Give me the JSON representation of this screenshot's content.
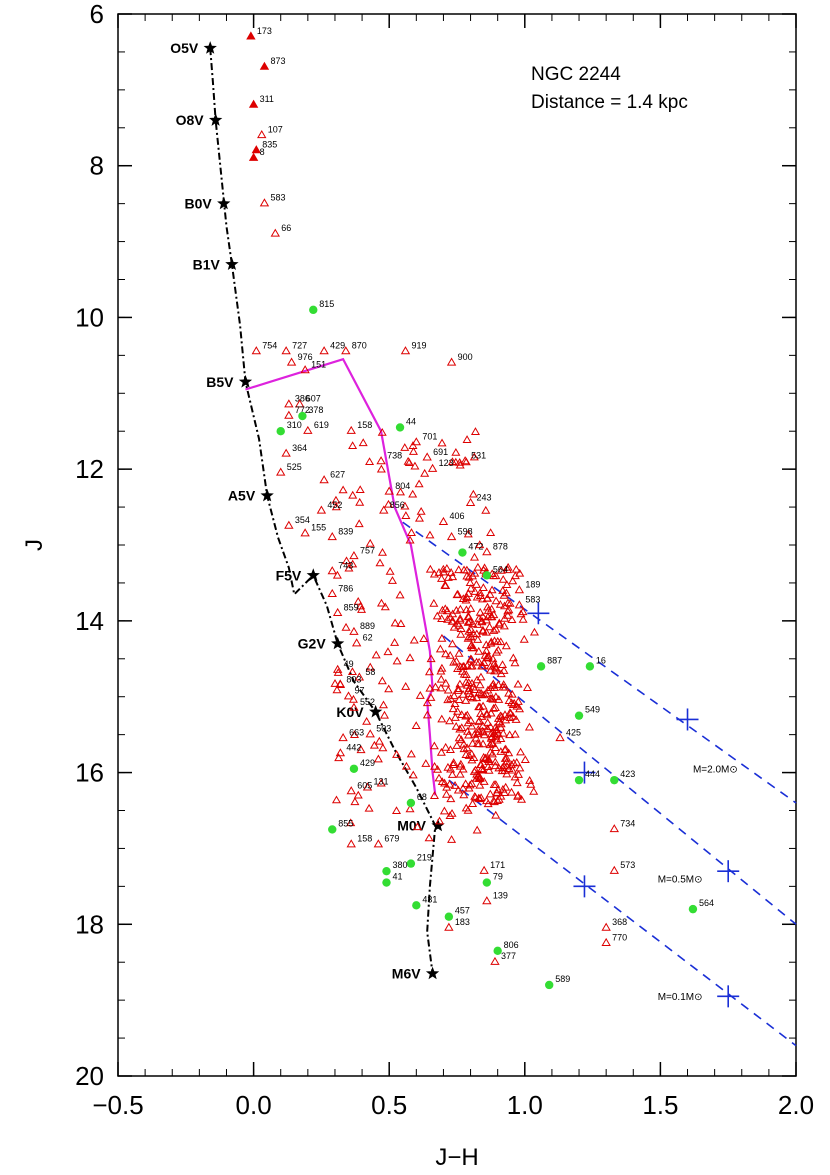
{
  "chart_data": {
    "type": "scatter",
    "title": "NGC 2244",
    "subtitle": "Distance = 1.4 kpc",
    "xlabel": "J−H",
    "ylabel": "J",
    "xlim": [
      -0.5,
      2.0
    ],
    "ylim": [
      20,
      6
    ],
    "x_ticks": [
      -0.5,
      0.0,
      0.5,
      1.0,
      1.5,
      2.0
    ],
    "x_tick_labels": [
      "−0.5",
      "0.0",
      "0.5",
      "1.0",
      "1.5",
      "2.0"
    ],
    "y_ticks": [
      6,
      8,
      10,
      12,
      14,
      16,
      18,
      20
    ],
    "y_tick_labels": [
      "6",
      "8",
      "10",
      "12",
      "14",
      "16",
      "18",
      "20"
    ],
    "y_inverted": true,
    "grid": false,
    "colors": {
      "triangles": "#dd0000",
      "disk_stars": "#33dd33",
      "ms_track": "#000000",
      "pms_track": "#dd22dd",
      "reddening": "#1a2fd6",
      "axis": "#000000"
    },
    "main_sequence": {
      "style": "dash-dot",
      "points": [
        {
          "x": -0.16,
          "y": 6.45
        },
        {
          "x": -0.15,
          "y": 6.9
        },
        {
          "x": -0.14,
          "y": 7.4
        },
        {
          "x": -0.12,
          "y": 8.1
        },
        {
          "x": -0.1,
          "y": 8.8
        },
        {
          "x": -0.08,
          "y": 9.3
        },
        {
          "x": -0.05,
          "y": 10.1
        },
        {
          "x": -0.03,
          "y": 10.85
        },
        {
          "x": 0.02,
          "y": 11.6
        },
        {
          "x": 0.05,
          "y": 12.35
        },
        {
          "x": 0.09,
          "y": 12.9
        },
        {
          "x": 0.13,
          "y": 13.3
        },
        {
          "x": 0.15,
          "y": 13.65
        },
        {
          "x": 0.22,
          "y": 13.4
        },
        {
          "x": 0.27,
          "y": 13.8
        },
        {
          "x": 0.31,
          "y": 14.3
        },
        {
          "x": 0.37,
          "y": 14.8
        },
        {
          "x": 0.45,
          "y": 15.2
        },
        {
          "x": 0.52,
          "y": 15.7
        },
        {
          "x": 0.6,
          "y": 16.2
        },
        {
          "x": 0.67,
          "y": 16.7
        },
        {
          "x": 0.65,
          "y": 17.5
        },
        {
          "x": 0.64,
          "y": 18.1
        },
        {
          "x": 0.66,
          "y": 18.65
        }
      ]
    },
    "spectral_types": [
      {
        "label": "O5V",
        "x": -0.16,
        "y": 6.45
      },
      {
        "label": "O8V",
        "x": -0.14,
        "y": 7.4
      },
      {
        "label": "B0V",
        "x": -0.11,
        "y": 8.5
      },
      {
        "label": "B1V",
        "x": -0.08,
        "y": 9.3
      },
      {
        "label": "B5V",
        "x": -0.03,
        "y": 10.85
      },
      {
        "label": "A5V",
        "x": 0.05,
        "y": 12.35
      },
      {
        "label": "F5V",
        "x": 0.22,
        "y": 13.4
      },
      {
        "label": "G2V",
        "x": 0.31,
        "y": 14.3
      },
      {
        "label": "K0V",
        "x": 0.45,
        "y": 15.2
      },
      {
        "label": "M0V",
        "x": 0.68,
        "y": 16.7
      },
      {
        "label": "M6V",
        "x": 0.66,
        "y": 18.65
      }
    ],
    "pms_isochrone": {
      "points": [
        {
          "x": -0.03,
          "y": 10.95
        },
        {
          "x": 0.33,
          "y": 10.55
        },
        {
          "x": 0.47,
          "y": 11.5
        },
        {
          "x": 0.52,
          "y": 12.5
        },
        {
          "x": 0.58,
          "y": 13.0
        },
        {
          "x": 0.62,
          "y": 13.8
        },
        {
          "x": 0.65,
          "y": 14.4
        },
        {
          "x": 0.66,
          "y": 14.9
        },
        {
          "x": 0.64,
          "y": 15.05
        },
        {
          "x": 0.65,
          "y": 15.5
        },
        {
          "x": 0.66,
          "y": 16.0
        },
        {
          "x": 0.67,
          "y": 16.3
        }
      ]
    },
    "reddening_vectors": [
      {
        "from": {
          "x": 0.55,
          "y": 12.7
        },
        "to": {
          "x": 2.0,
          "y": 16.4
        },
        "crosses": [
          {
            "x": 1.05,
            "y": 13.9
          },
          {
            "x": 1.6,
            "y": 15.3
          }
        ]
      },
      {
        "from": {
          "x": 0.7,
          "y": 14.2
        },
        "to": {
          "x": 2.0,
          "y": 18.0
        },
        "crosses": [
          {
            "x": 1.22,
            "y": 16.0
          },
          {
            "x": 1.75,
            "y": 17.3
          }
        ]
      },
      {
        "from": {
          "x": 0.72,
          "y": 16.1
        },
        "to": {
          "x": 2.0,
          "y": 19.6
        },
        "crosses": [
          {
            "x": 1.22,
            "y": 17.5
          },
          {
            "x": 1.75,
            "y": 18.95
          }
        ]
      }
    ],
    "mass_labels": [
      {
        "text": "M=2.0M⊙",
        "x": 1.62,
        "y": 16.0
      },
      {
        "text": "M=0.5M⊙",
        "x": 1.49,
        "y": 17.45
      },
      {
        "text": "M=0.1M⊙",
        "x": 1.49,
        "y": 19.0
      }
    ],
    "labeled_stars": [
      {
        "id": "173",
        "x": -0.01,
        "y": 6.3,
        "marker": "triangle-filled"
      },
      {
        "id": "873",
        "x": 0.04,
        "y": 6.7,
        "marker": "triangle-filled"
      },
      {
        "id": "311",
        "x": 0.0,
        "y": 7.2,
        "marker": "triangle-filled"
      },
      {
        "id": "107",
        "x": 0.03,
        "y": 7.6,
        "marker": "triangle"
      },
      {
        "id": "835",
        "x": 0.01,
        "y": 7.8,
        "marker": "triangle-filled"
      },
      {
        "id": "8",
        "x": 0.0,
        "y": 7.9,
        "marker": "triangle-filled"
      },
      {
        "id": "583",
        "x": 0.04,
        "y": 8.5,
        "marker": "triangle"
      },
      {
        "id": "66",
        "x": 0.08,
        "y": 8.9,
        "marker": "triangle"
      },
      {
        "id": "815",
        "x": 0.22,
        "y": 9.9,
        "marker": "disk"
      },
      {
        "id": "754",
        "x": 0.01,
        "y": 10.45,
        "marker": "triangle"
      },
      {
        "id": "727",
        "x": 0.12,
        "y": 10.45,
        "marker": "triangle"
      },
      {
        "id": "429",
        "x": 0.26,
        "y": 10.45,
        "marker": "triangle"
      },
      {
        "id": "870",
        "x": 0.34,
        "y": 10.45,
        "marker": "triangle"
      },
      {
        "id": "919",
        "x": 0.56,
        "y": 10.45,
        "marker": "triangle"
      },
      {
        "id": "900",
        "x": 0.73,
        "y": 10.6,
        "marker": "triangle"
      },
      {
        "id": "976",
        "x": 0.14,
        "y": 10.6,
        "marker": "triangle"
      },
      {
        "id": "151",
        "x": 0.19,
        "y": 10.7,
        "marker": "triangle"
      },
      {
        "id": "386",
        "x": 0.13,
        "y": 11.15,
        "marker": "triangle"
      },
      {
        "id": "607",
        "x": 0.17,
        "y": 11.15,
        "marker": "triangle"
      },
      {
        "id": "772",
        "x": 0.13,
        "y": 11.3,
        "marker": "triangle"
      },
      {
        "id": "378",
        "x": 0.18,
        "y": 11.3,
        "marker": "disk"
      },
      {
        "id": "310",
        "x": 0.1,
        "y": 11.5,
        "marker": "disk"
      },
      {
        "id": "619",
        "x": 0.2,
        "y": 11.5,
        "marker": "triangle"
      },
      {
        "id": "158",
        "x": 0.36,
        "y": 11.5,
        "marker": "triangle"
      },
      {
        "id": "44",
        "x": 0.54,
        "y": 11.45,
        "marker": "disk"
      },
      {
        "id": "701",
        "x": 0.6,
        "y": 11.65,
        "marker": "triangle"
      },
      {
        "id": "364",
        "x": 0.12,
        "y": 11.8,
        "marker": "triangle"
      },
      {
        "id": "691",
        "x": 0.64,
        "y": 11.85,
        "marker": "triangle"
      },
      {
        "id": "531",
        "x": 0.78,
        "y": 11.9,
        "marker": "triangle"
      },
      {
        "id": "738",
        "x": 0.47,
        "y": 11.9,
        "marker": "triangle"
      },
      {
        "id": "123",
        "x": 0.66,
        "y": 12.0,
        "marker": "triangle"
      },
      {
        "id": "525",
        "x": 0.1,
        "y": 12.05,
        "marker": "triangle"
      },
      {
        "id": "627",
        "x": 0.26,
        "y": 12.15,
        "marker": "triangle"
      },
      {
        "id": "804",
        "x": 0.5,
        "y": 12.3,
        "marker": "triangle"
      },
      {
        "id": "243",
        "x": 0.8,
        "y": 12.45,
        "marker": "triangle"
      },
      {
        "id": "452",
        "x": 0.25,
        "y": 12.55,
        "marker": "triangle"
      },
      {
        "id": "856",
        "x": 0.48,
        "y": 12.55,
        "marker": "triangle"
      },
      {
        "id": "354",
        "x": 0.13,
        "y": 12.75,
        "marker": "triangle"
      },
      {
        "id": "406",
        "x": 0.7,
        "y": 12.7,
        "marker": "triangle"
      },
      {
        "id": "155",
        "x": 0.19,
        "y": 12.85,
        "marker": "triangle"
      },
      {
        "id": "839",
        "x": 0.29,
        "y": 12.9,
        "marker": "triangle"
      },
      {
        "id": "598",
        "x": 0.73,
        "y": 12.9,
        "marker": "triangle"
      },
      {
        "id": "757",
        "x": 0.37,
        "y": 13.15,
        "marker": "triangle"
      },
      {
        "id": "472",
        "x": 0.77,
        "y": 13.1,
        "marker": "disk"
      },
      {
        "id": "878",
        "x": 0.86,
        "y": 13.1,
        "marker": "triangle"
      },
      {
        "id": "743",
        "x": 0.29,
        "y": 13.35,
        "marker": "triangle"
      },
      {
        "id": "564",
        "x": 0.86,
        "y": 13.4,
        "marker": "disk"
      },
      {
        "id": "189",
        "x": 0.98,
        "y": 13.6,
        "marker": "triangle"
      },
      {
        "id": "786",
        "x": 0.29,
        "y": 13.65,
        "marker": "triangle"
      },
      {
        "id": "583",
        "x": 0.98,
        "y": 13.8,
        "marker": "triangle"
      },
      {
        "id": "859",
        "x": 0.31,
        "y": 13.9,
        "marker": "triangle"
      },
      {
        "id": "889",
        "x": 0.37,
        "y": 14.15,
        "marker": "triangle"
      },
      {
        "id": "62",
        "x": 0.38,
        "y": 14.3,
        "marker": "triangle"
      },
      {
        "id": "49",
        "x": 0.31,
        "y": 14.65,
        "marker": "triangle"
      },
      {
        "id": "58",
        "x": 0.39,
        "y": 14.75,
        "marker": "triangle"
      },
      {
        "id": "887",
        "x": 1.06,
        "y": 14.6,
        "marker": "disk"
      },
      {
        "id": "16",
        "x": 1.24,
        "y": 14.6,
        "marker": "disk"
      },
      {
        "id": "803",
        "x": 0.32,
        "y": 14.85,
        "marker": "triangle"
      },
      {
        "id": "97",
        "x": 0.35,
        "y": 15.0,
        "marker": "triangle"
      },
      {
        "id": "552",
        "x": 0.37,
        "y": 15.15,
        "marker": "triangle"
      },
      {
        "id": "549",
        "x": 1.2,
        "y": 15.25,
        "marker": "disk"
      },
      {
        "id": "503",
        "x": 0.43,
        "y": 15.5,
        "marker": "triangle"
      },
      {
        "id": "663",
        "x": 0.33,
        "y": 15.55,
        "marker": "triangle"
      },
      {
        "id": "425",
        "x": 1.13,
        "y": 15.55,
        "marker": "triangle"
      },
      {
        "id": "442",
        "x": 0.32,
        "y": 15.75,
        "marker": "triangle"
      },
      {
        "id": "429",
        "x": 0.37,
        "y": 15.95,
        "marker": "disk"
      },
      {
        "id": "131",
        "x": 0.42,
        "y": 16.2,
        "marker": "triangle"
      },
      {
        "id": "423",
        "x": 1.33,
        "y": 16.1,
        "marker": "disk"
      },
      {
        "id": "444",
        "x": 1.2,
        "y": 16.1,
        "marker": "disk"
      },
      {
        "id": "605",
        "x": 0.36,
        "y": 16.25,
        "marker": "triangle"
      },
      {
        "id": "68",
        "x": 0.58,
        "y": 16.4,
        "marker": "disk"
      },
      {
        "id": "855",
        "x": 0.29,
        "y": 16.75,
        "marker": "disk"
      },
      {
        "id": "734",
        "x": 1.33,
        "y": 16.75,
        "marker": "triangle"
      },
      {
        "id": "158",
        "x": 0.36,
        "y": 16.95,
        "marker": "triangle"
      },
      {
        "id": "679",
        "x": 0.46,
        "y": 16.95,
        "marker": "triangle"
      },
      {
        "id": "219",
        "x": 0.58,
        "y": 17.2,
        "marker": "disk"
      },
      {
        "id": "171",
        "x": 0.85,
        "y": 17.3,
        "marker": "triangle"
      },
      {
        "id": "380",
        "x": 0.49,
        "y": 17.3,
        "marker": "disk"
      },
      {
        "id": "573",
        "x": 1.33,
        "y": 17.3,
        "marker": "triangle"
      },
      {
        "id": "79",
        "x": 0.86,
        "y": 17.45,
        "marker": "disk"
      },
      {
        "id": "41",
        "x": 0.49,
        "y": 17.45,
        "marker": "disk"
      },
      {
        "id": "139",
        "x": 0.86,
        "y": 17.7,
        "marker": "triangle"
      },
      {
        "id": "431",
        "x": 0.6,
        "y": 17.75,
        "marker": "disk"
      },
      {
        "id": "457",
        "x": 0.72,
        "y": 17.9,
        "marker": "disk"
      },
      {
        "id": "564",
        "x": 1.62,
        "y": 17.8,
        "marker": "disk"
      },
      {
        "id": "368",
        "x": 1.3,
        "y": 18.05,
        "marker": "triangle"
      },
      {
        "id": "183",
        "x": 0.72,
        "y": 18.05,
        "marker": "triangle"
      },
      {
        "id": "770",
        "x": 1.3,
        "y": 18.25,
        "marker": "triangle"
      },
      {
        "id": "806",
        "x": 0.9,
        "y": 18.35,
        "marker": "disk"
      },
      {
        "id": "377",
        "x": 0.89,
        "y": 18.5,
        "marker": "triangle"
      },
      {
        "id": "589",
        "x": 1.09,
        "y": 18.8,
        "marker": "disk"
      }
    ]
  }
}
